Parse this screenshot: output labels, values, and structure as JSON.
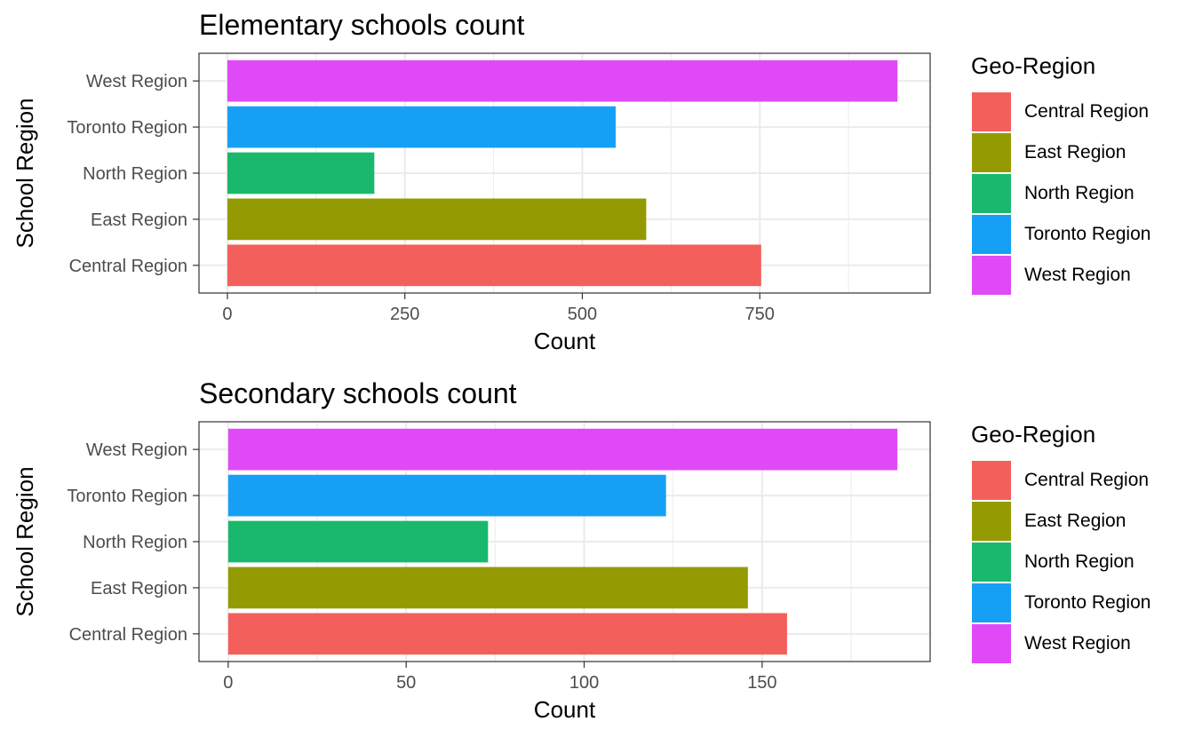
{
  "chart_data": [
    {
      "type": "bar",
      "orientation": "horizontal",
      "title": "Elementary schools count",
      "xlabel": "Count",
      "ylabel": "School Region",
      "categories": [
        "Central Region",
        "East Region",
        "North Region",
        "Toronto Region",
        "West Region"
      ],
      "values": [
        752,
        590,
        207,
        547,
        944
      ],
      "xlim": [
        -40,
        990
      ],
      "xticks": [
        0,
        250,
        500,
        750
      ],
      "xtick_labels": [
        "0",
        "250",
        "500",
        "750"
      ],
      "grid": true,
      "legend": {
        "title": "Geo-Region",
        "placement": "right",
        "entries": [
          "Central Region",
          "East Region",
          "North Region",
          "Toronto Region",
          "West Region"
        ]
      }
    },
    {
      "type": "bar",
      "orientation": "horizontal",
      "title": "Secondary schools count",
      "xlabel": "Count",
      "ylabel": "School Region",
      "categories": [
        "Central Region",
        "East Region",
        "North Region",
        "Toronto Region",
        "West Region"
      ],
      "values": [
        157,
        146,
        73,
        123,
        188
      ],
      "xlim": [
        -8.2,
        197.2
      ],
      "xticks": [
        0,
        50,
        100,
        150
      ],
      "xtick_labels": [
        "0",
        "50",
        "100",
        "150"
      ],
      "grid": true,
      "legend": {
        "title": "Geo-Region",
        "placement": "right",
        "entries": [
          "Central Region",
          "East Region",
          "North Region",
          "Toronto Region",
          "West Region"
        ]
      }
    }
  ],
  "colors": {
    "Central Region": "#F35F5B",
    "East Region": "#949A02",
    "North Region": "#1AB86C",
    "Toronto Region": "#16A0F5",
    "West Region": "#DF4AF6",
    "grid": "#EBEBEB",
    "panel_border": "#333333",
    "tick_text": "#4D4D4D"
  }
}
